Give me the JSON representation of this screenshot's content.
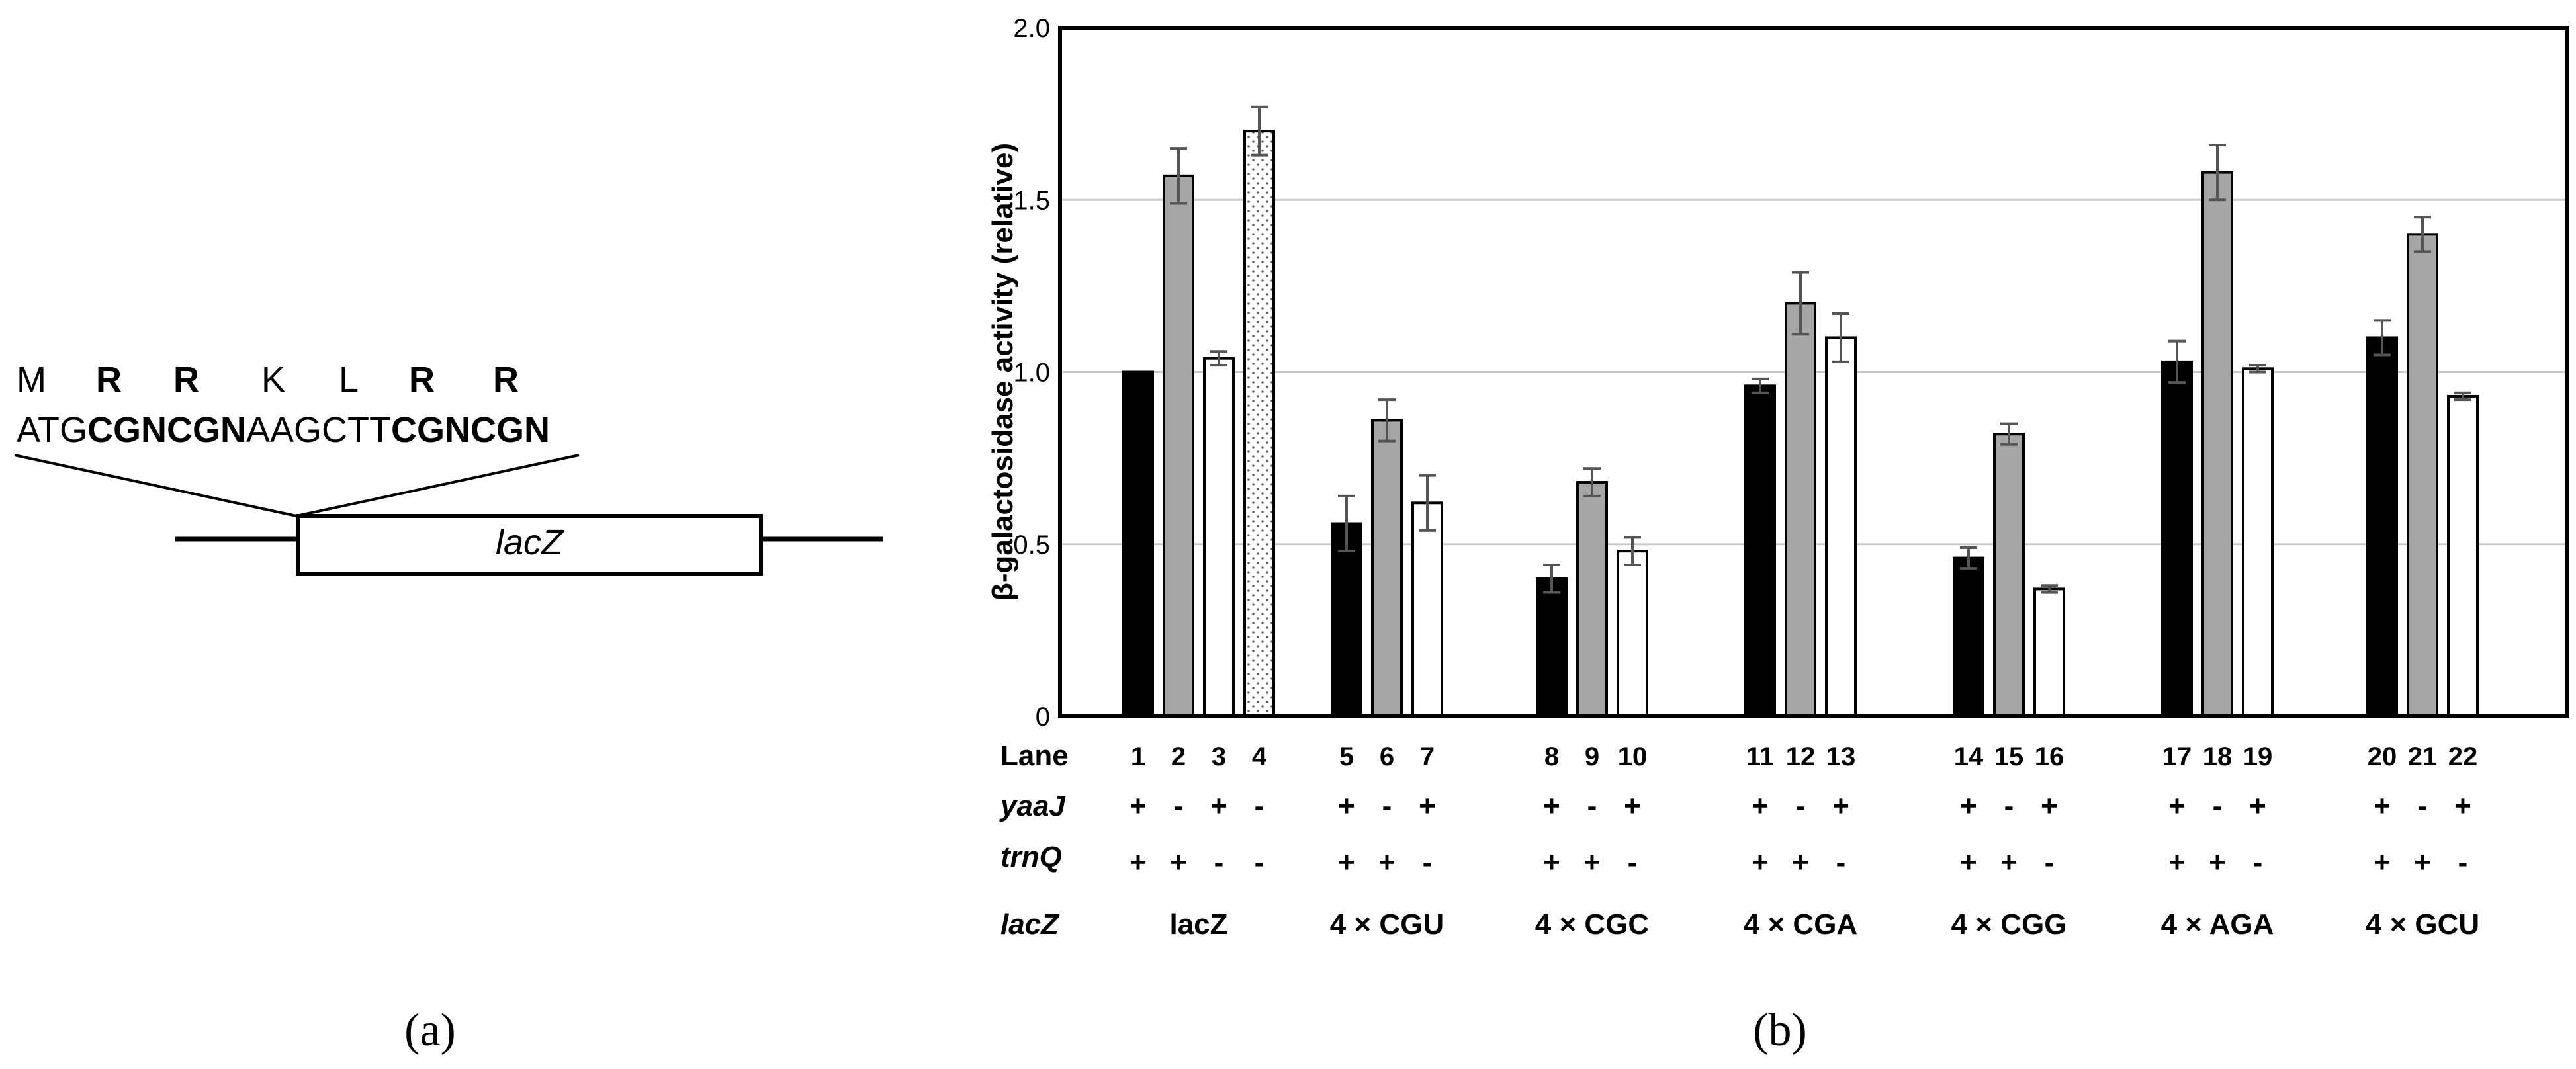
{
  "panel_a": {
    "amino_acids": [
      {
        "text": "M",
        "bold": false
      },
      {
        "text": "R",
        "bold": true
      },
      {
        "text": "R",
        "bold": true
      },
      {
        "text": "K",
        "bold": false
      },
      {
        "text": "L",
        "bold": false
      },
      {
        "text": "R",
        "bold": true
      },
      {
        "text": "R",
        "bold": true
      }
    ],
    "sequence": [
      {
        "text": "ATG",
        "bold": false
      },
      {
        "text": "CGNCGN",
        "bold": true
      },
      {
        "text": "AAGCTT",
        "bold": false
      },
      {
        "text": "CGNCGN",
        "bold": true
      }
    ],
    "gene_label": "lacZ",
    "panel_label": "(a)"
  },
  "panel_b": {
    "panel_label": "(b)",
    "row_labels": [
      "Lane",
      "yaaJ",
      "trnQ",
      "lacZ"
    ]
  },
  "chart_data": {
    "type": "bar",
    "title": "",
    "ylabel": "β-galactosidase activity (relative)",
    "xlabel": "",
    "ylim": [
      0,
      2.0
    ],
    "yticks": [
      "0",
      "0.5",
      "1.0",
      "1.5",
      "2.0"
    ],
    "ytick_values": [
      0,
      0.5,
      1.0,
      1.5,
      2.0
    ],
    "grid": "horizontal",
    "fill_colors": {
      "black": "#000000",
      "gray": "#a6a6a6",
      "white": "#ffffff",
      "dotted": "#ffffff"
    },
    "groups": [
      {
        "label": "lacZ",
        "bars": [
          {
            "lane": "1",
            "value": 1.0,
            "err": 0.0,
            "fill": "black",
            "yaaJ": "+",
            "trnQ": "+"
          },
          {
            "lane": "2",
            "value": 1.57,
            "err": 0.08,
            "fill": "gray",
            "yaaJ": "-",
            "trnQ": "+"
          },
          {
            "lane": "3",
            "value": 1.04,
            "err": 0.02,
            "fill": "white",
            "yaaJ": "+",
            "trnQ": "-"
          },
          {
            "lane": "4",
            "value": 1.7,
            "err": 0.07,
            "fill": "dotted",
            "yaaJ": "-",
            "trnQ": "-"
          }
        ]
      },
      {
        "label": "4 × CGU",
        "bars": [
          {
            "lane": "5",
            "value": 0.56,
            "err": 0.08,
            "fill": "black",
            "yaaJ": "+",
            "trnQ": "+"
          },
          {
            "lane": "6",
            "value": 0.86,
            "err": 0.06,
            "fill": "gray",
            "yaaJ": "-",
            "trnQ": "+"
          },
          {
            "lane": "7",
            "value": 0.62,
            "err": 0.08,
            "fill": "white",
            "yaaJ": "+",
            "trnQ": "-"
          }
        ]
      },
      {
        "label": "4 × CGC",
        "bars": [
          {
            "lane": "8",
            "value": 0.4,
            "err": 0.04,
            "fill": "black",
            "yaaJ": "+",
            "trnQ": "+"
          },
          {
            "lane": "9",
            "value": 0.68,
            "err": 0.04,
            "fill": "gray",
            "yaaJ": "-",
            "trnQ": "+"
          },
          {
            "lane": "10",
            "value": 0.48,
            "err": 0.04,
            "fill": "white",
            "yaaJ": "+",
            "trnQ": "-"
          }
        ]
      },
      {
        "label": "4 × CGA",
        "bars": [
          {
            "lane": "11",
            "value": 0.96,
            "err": 0.02,
            "fill": "black",
            "yaaJ": "+",
            "trnQ": "+"
          },
          {
            "lane": "12",
            "value": 1.2,
            "err": 0.09,
            "fill": "gray",
            "yaaJ": "-",
            "trnQ": "+"
          },
          {
            "lane": "13",
            "value": 1.1,
            "err": 0.07,
            "fill": "white",
            "yaaJ": "+",
            "trnQ": "-"
          }
        ]
      },
      {
        "label": "4 × CGG",
        "bars": [
          {
            "lane": "14",
            "value": 0.46,
            "err": 0.03,
            "fill": "black",
            "yaaJ": "+",
            "trnQ": "+"
          },
          {
            "lane": "15",
            "value": 0.82,
            "err": 0.03,
            "fill": "gray",
            "yaaJ": "-",
            "trnQ": "+"
          },
          {
            "lane": "16",
            "value": 0.37,
            "err": 0.01,
            "fill": "white",
            "yaaJ": "+",
            "trnQ": "-"
          }
        ]
      },
      {
        "label": "4 × AGA",
        "bars": [
          {
            "lane": "17",
            "value": 1.03,
            "err": 0.06,
            "fill": "black",
            "yaaJ": "+",
            "trnQ": "+"
          },
          {
            "lane": "18",
            "value": 1.58,
            "err": 0.08,
            "fill": "gray",
            "yaaJ": "-",
            "trnQ": "+"
          },
          {
            "lane": "19",
            "value": 1.01,
            "err": 0.01,
            "fill": "white",
            "yaaJ": "+",
            "trnQ": "-"
          }
        ]
      },
      {
        "label": "4 × GCU",
        "bars": [
          {
            "lane": "20",
            "value": 1.1,
            "err": 0.05,
            "fill": "black",
            "yaaJ": "+",
            "trnQ": "+"
          },
          {
            "lane": "21",
            "value": 1.4,
            "err": 0.05,
            "fill": "gray",
            "yaaJ": "-",
            "trnQ": "+"
          },
          {
            "lane": "22",
            "value": 0.93,
            "err": 0.01,
            "fill": "white",
            "yaaJ": "+",
            "trnQ": "-"
          }
        ]
      }
    ]
  }
}
